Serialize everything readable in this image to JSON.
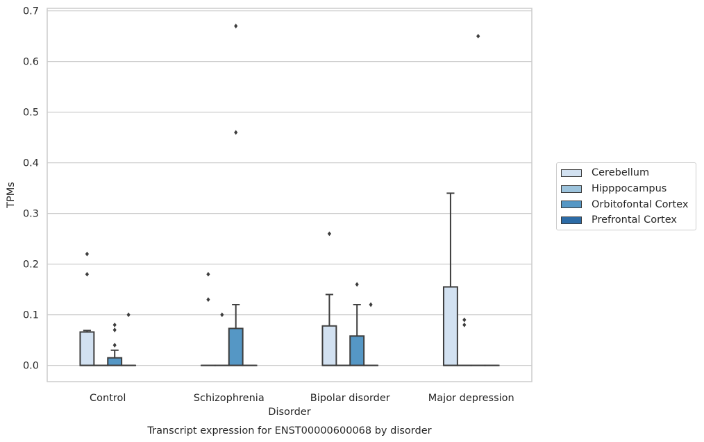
{
  "chart_data": {
    "type": "box",
    "title": "Transcript expression for ENST00000600068 by disorder",
    "xlabel": "Disorder",
    "ylabel": "TPMs",
    "ylim": [
      -0.032,
      0.705
    ],
    "yticks": [
      "0.0",
      "0.1",
      "0.2",
      "0.3",
      "0.4",
      "0.5",
      "0.6",
      "0.7"
    ],
    "grid": true,
    "legend_position": "right",
    "categories": [
      "Control",
      "Schizophrenia",
      "Bipolar disorder",
      "Major depression"
    ],
    "series": [
      {
        "name": "Cerebellum",
        "color": "#d2e1f1",
        "boxes": [
          {
            "q1": 0.0,
            "median": 0.0,
            "q3": 0.066,
            "whisker_low": 0.0,
            "whisker_high": 0.069,
            "outliers": [
              0.18,
              0.22
            ]
          },
          {
            "q1": 0.0,
            "median": 0.0,
            "q3": 0.0,
            "whisker_low": 0.0,
            "whisker_high": 0.0,
            "outliers": [
              0.13,
              0.18
            ]
          },
          {
            "q1": 0.0,
            "median": 0.0,
            "q3": 0.078,
            "whisker_low": 0.0,
            "whisker_high": 0.14,
            "outliers": [
              0.26
            ]
          },
          {
            "q1": 0.0,
            "median": 0.0,
            "q3": 0.155,
            "whisker_low": 0.0,
            "whisker_high": 0.34,
            "outliers": []
          }
        ]
      },
      {
        "name": "Hipppocampus",
        "color": "#9cc3dc",
        "boxes": [
          {
            "q1": 0.0,
            "median": 0.0,
            "q3": 0.0,
            "whisker_low": 0.0,
            "whisker_high": 0.0,
            "outliers": []
          },
          {
            "q1": 0.0,
            "median": 0.0,
            "q3": 0.0,
            "whisker_low": 0.0,
            "whisker_high": 0.0,
            "outliers": [
              0.1
            ]
          },
          {
            "q1": 0.0,
            "median": 0.0,
            "q3": 0.0,
            "whisker_low": 0.0,
            "whisker_high": 0.0,
            "outliers": []
          },
          {
            "q1": 0.0,
            "median": 0.0,
            "q3": 0.0,
            "whisker_low": 0.0,
            "whisker_high": 0.0,
            "outliers": [
              0.08,
              0.09
            ]
          }
        ]
      },
      {
        "name": "Orbitofontal Cortex",
        "color": "#5597c5",
        "boxes": [
          {
            "q1": 0.0,
            "median": 0.0,
            "q3": 0.015,
            "whisker_low": 0.0,
            "whisker_high": 0.03,
            "outliers": [
              0.04,
              0.07,
              0.08
            ]
          },
          {
            "q1": 0.0,
            "median": 0.0,
            "q3": 0.073,
            "whisker_low": 0.0,
            "whisker_high": 0.12,
            "outliers": [
              0.46,
              0.67
            ]
          },
          {
            "q1": 0.0,
            "median": 0.0,
            "q3": 0.058,
            "whisker_low": 0.0,
            "whisker_high": 0.12,
            "outliers": [
              0.16
            ]
          },
          {
            "q1": 0.0,
            "median": 0.0,
            "q3": 0.0,
            "whisker_low": 0.0,
            "whisker_high": 0.0,
            "outliers": [
              0.65
            ]
          }
        ]
      },
      {
        "name": "Prefrontal Cortex",
        "color": "#2c6ba6",
        "boxes": [
          {
            "q1": 0.0,
            "median": 0.0,
            "q3": 0.0,
            "whisker_low": 0.0,
            "whisker_high": 0.0,
            "outliers": [
              0.1
            ]
          },
          {
            "q1": 0.0,
            "median": 0.0,
            "q3": 0.0,
            "whisker_low": 0.0,
            "whisker_high": 0.0,
            "outliers": []
          },
          {
            "q1": 0.0,
            "median": 0.0,
            "q3": 0.0,
            "whisker_low": 0.0,
            "whisker_high": 0.0,
            "outliers": [
              0.12
            ]
          },
          {
            "q1": 0.0,
            "median": 0.0,
            "q3": 0.0,
            "whisker_low": 0.0,
            "whisker_high": 0.0,
            "outliers": []
          }
        ]
      }
    ]
  }
}
